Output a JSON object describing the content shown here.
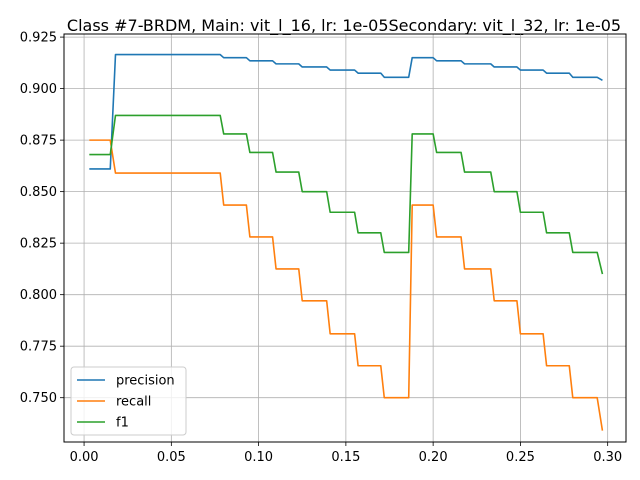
{
  "chart_data": {
    "type": "line",
    "title": "Class #7-BRDM, Main: vit_l_16, lr: 1e-05Secondary: vit_l_32, lr: 1e-05",
    "xlabel": "",
    "ylabel": "",
    "xlim": [
      -0.0115,
      0.3105
    ],
    "ylim": [
      0.7285,
      0.9265
    ],
    "xticks": [
      0.0,
      0.05,
      0.1,
      0.15,
      0.2,
      0.25,
      0.3
    ],
    "xtick_labels": [
      "0.00",
      "0.05",
      "0.10",
      "0.15",
      "0.20",
      "0.25",
      "0.30"
    ],
    "yticks": [
      0.75,
      0.775,
      0.8,
      0.825,
      0.85,
      0.875,
      0.9,
      0.925
    ],
    "ytick_labels": [
      "0.750",
      "0.775",
      "0.800",
      "0.825",
      "0.850",
      "0.875",
      "0.900",
      "0.925"
    ],
    "grid": true,
    "legend_position": "lower-left",
    "series": [
      {
        "name": "precision",
        "color": "#1f77b4",
        "points": [
          [
            0.003,
            0.861
          ],
          [
            0.015,
            0.861
          ],
          [
            0.018,
            0.9165
          ],
          [
            0.078,
            0.9165
          ],
          [
            0.08,
            0.915
          ],
          [
            0.093,
            0.915
          ],
          [
            0.095,
            0.9135
          ],
          [
            0.108,
            0.9135
          ],
          [
            0.11,
            0.912
          ],
          [
            0.123,
            0.912
          ],
          [
            0.125,
            0.9105
          ],
          [
            0.139,
            0.9105
          ],
          [
            0.141,
            0.909
          ],
          [
            0.155,
            0.909
          ],
          [
            0.157,
            0.9075
          ],
          [
            0.17,
            0.9075
          ],
          [
            0.172,
            0.9055
          ],
          [
            0.186,
            0.9055
          ],
          [
            0.188,
            0.915
          ],
          [
            0.2,
            0.915
          ],
          [
            0.202,
            0.9135
          ],
          [
            0.216,
            0.9135
          ],
          [
            0.218,
            0.912
          ],
          [
            0.233,
            0.912
          ],
          [
            0.235,
            0.9105
          ],
          [
            0.248,
            0.9105
          ],
          [
            0.25,
            0.909
          ],
          [
            0.263,
            0.909
          ],
          [
            0.265,
            0.9075
          ],
          [
            0.278,
            0.9075
          ],
          [
            0.28,
            0.9055
          ],
          [
            0.294,
            0.9055
          ],
          [
            0.297,
            0.904
          ]
        ]
      },
      {
        "name": "recall",
        "color": "#ff7f0e",
        "points": [
          [
            0.003,
            0.875
          ],
          [
            0.015,
            0.875
          ],
          [
            0.018,
            0.859
          ],
          [
            0.078,
            0.859
          ],
          [
            0.08,
            0.8435
          ],
          [
            0.093,
            0.8435
          ],
          [
            0.095,
            0.828
          ],
          [
            0.108,
            0.828
          ],
          [
            0.11,
            0.8125
          ],
          [
            0.123,
            0.8125
          ],
          [
            0.125,
            0.797
          ],
          [
            0.139,
            0.797
          ],
          [
            0.141,
            0.781
          ],
          [
            0.155,
            0.781
          ],
          [
            0.157,
            0.7655
          ],
          [
            0.17,
            0.7655
          ],
          [
            0.172,
            0.75
          ],
          [
            0.186,
            0.75
          ],
          [
            0.188,
            0.8435
          ],
          [
            0.2,
            0.8435
          ],
          [
            0.202,
            0.828
          ],
          [
            0.216,
            0.828
          ],
          [
            0.218,
            0.8125
          ],
          [
            0.233,
            0.8125
          ],
          [
            0.235,
            0.797
          ],
          [
            0.248,
            0.797
          ],
          [
            0.25,
            0.781
          ],
          [
            0.263,
            0.781
          ],
          [
            0.265,
            0.7655
          ],
          [
            0.278,
            0.7655
          ],
          [
            0.28,
            0.75
          ],
          [
            0.294,
            0.75
          ],
          [
            0.297,
            0.734
          ]
        ]
      },
      {
        "name": "f1",
        "color": "#2ca02c",
        "points": [
          [
            0.003,
            0.868
          ],
          [
            0.015,
            0.868
          ],
          [
            0.018,
            0.887
          ],
          [
            0.078,
            0.887
          ],
          [
            0.08,
            0.878
          ],
          [
            0.093,
            0.878
          ],
          [
            0.095,
            0.869
          ],
          [
            0.108,
            0.869
          ],
          [
            0.11,
            0.8595
          ],
          [
            0.123,
            0.8595
          ],
          [
            0.125,
            0.85
          ],
          [
            0.139,
            0.85
          ],
          [
            0.141,
            0.84
          ],
          [
            0.155,
            0.84
          ],
          [
            0.157,
            0.83
          ],
          [
            0.17,
            0.83
          ],
          [
            0.172,
            0.8205
          ],
          [
            0.186,
            0.8205
          ],
          [
            0.188,
            0.878
          ],
          [
            0.2,
            0.878
          ],
          [
            0.202,
            0.869
          ],
          [
            0.216,
            0.869
          ],
          [
            0.218,
            0.8595
          ],
          [
            0.233,
            0.8595
          ],
          [
            0.235,
            0.85
          ],
          [
            0.248,
            0.85
          ],
          [
            0.25,
            0.84
          ],
          [
            0.263,
            0.84
          ],
          [
            0.265,
            0.83
          ],
          [
            0.278,
            0.83
          ],
          [
            0.28,
            0.8205
          ],
          [
            0.294,
            0.8205
          ],
          [
            0.297,
            0.81
          ]
        ]
      }
    ]
  }
}
